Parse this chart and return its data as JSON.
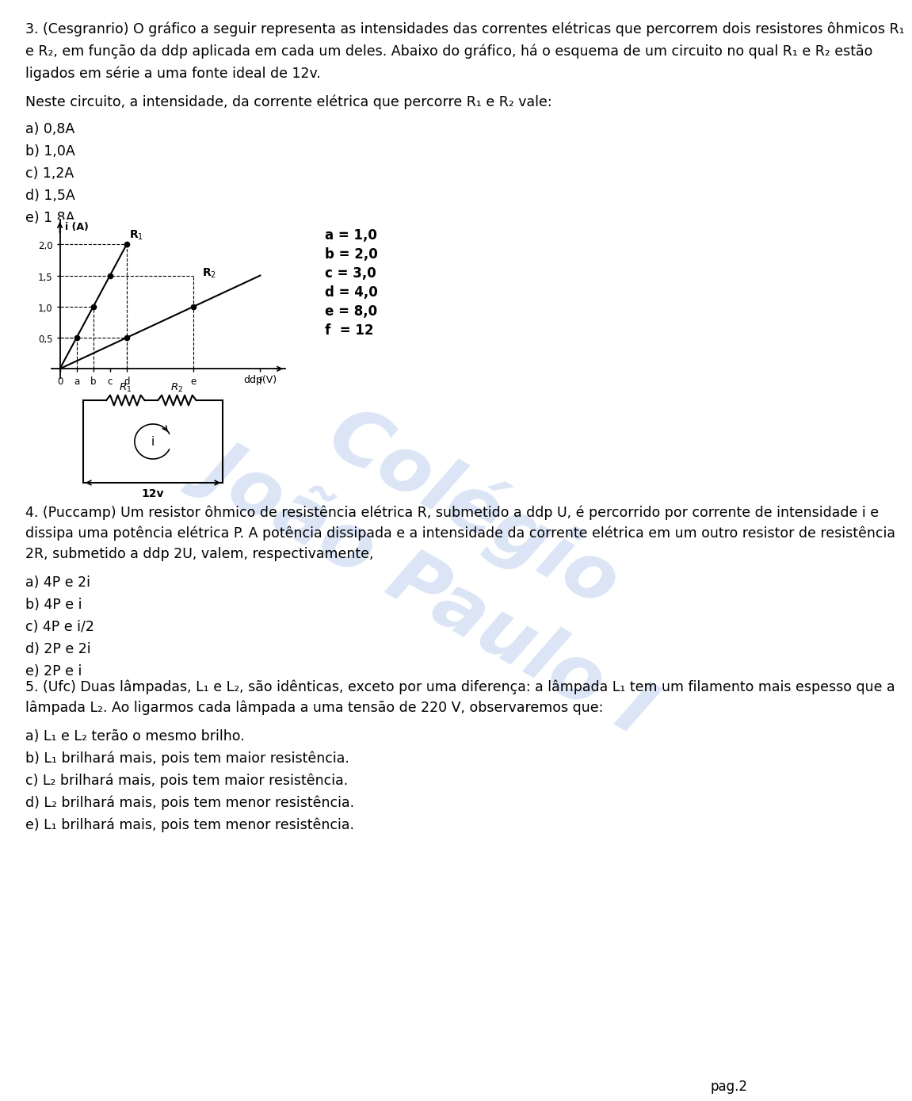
{
  "bg_color": "#ffffff",
  "text_color": "#000000",
  "page_label": "pag.2",
  "watermark_color": "#b8cceb",
  "q3_line1": "3. (Cesgranrio) O gráfico a seguir representa as intensidades das correntes elétricas que percorrem dois resistores ôhmicos R₁",
  "q3_line2": "e R₂, em função da ddp aplicada em cada um deles. Abaixo do gráfico, há o esquema de um circuito no qual R₁ e R₂ estão",
  "q3_line3": "ligados em série a uma fonte ideal de 12v.",
  "q3_question": "Neste circuito, a intensidade, da corrente elétrica que percorre R₁ e R₂ vale:",
  "q3_options": [
    "a) 0,8A",
    "b) 1,0A",
    "c) 1,2A",
    "d) 1,5A",
    "e) 1,8A"
  ],
  "graph_legend_items": [
    "a = 1,0",
    "b = 2,0",
    "c = 3,0",
    "d = 4,0",
    "e = 8,0",
    "f  = 12"
  ],
  "q4_line1": "4. (Puccamp) Um resistor ôhmico de resistência elétrica R, submetido a ddp U, é percorrido por corrente de intensidade i e",
  "q4_line2": "dissipa uma potência elétrica P. A potência dissipada e a intensidade da corrente elétrica em um outro resistor de resistência",
  "q4_line3": "2R, submetido a ddp 2U, valem, respectivamente,",
  "q4_options": [
    "a) 4P e 2i",
    "b) 4P e i",
    "c) 4P e i/2",
    "d) 2P e 2i",
    "e) 2P e i"
  ],
  "q5_line1": "5. (Ufc) Duas lâmpadas, L₁ e L₂, são idênticas, exceto por uma diferença: a lâmpada L₁ tem um filamento mais espesso que a",
  "q5_line2": "lâmpada L₂. Ao ligarmos cada lâmpada a uma tensão de 220 V, observaremos que:",
  "q5_options": [
    "a) L₁ e L₂ terão o mesmo brilho.",
    "b) L₁ brilhará mais, pois tem maior resistência.",
    "c) L₂ brilhará mais, pois tem maior resistência.",
    "d) L₂ brilhará mais, pois tem menor resistência.",
    "e) L₁ brilhará mais, pois tem menor resistência."
  ]
}
